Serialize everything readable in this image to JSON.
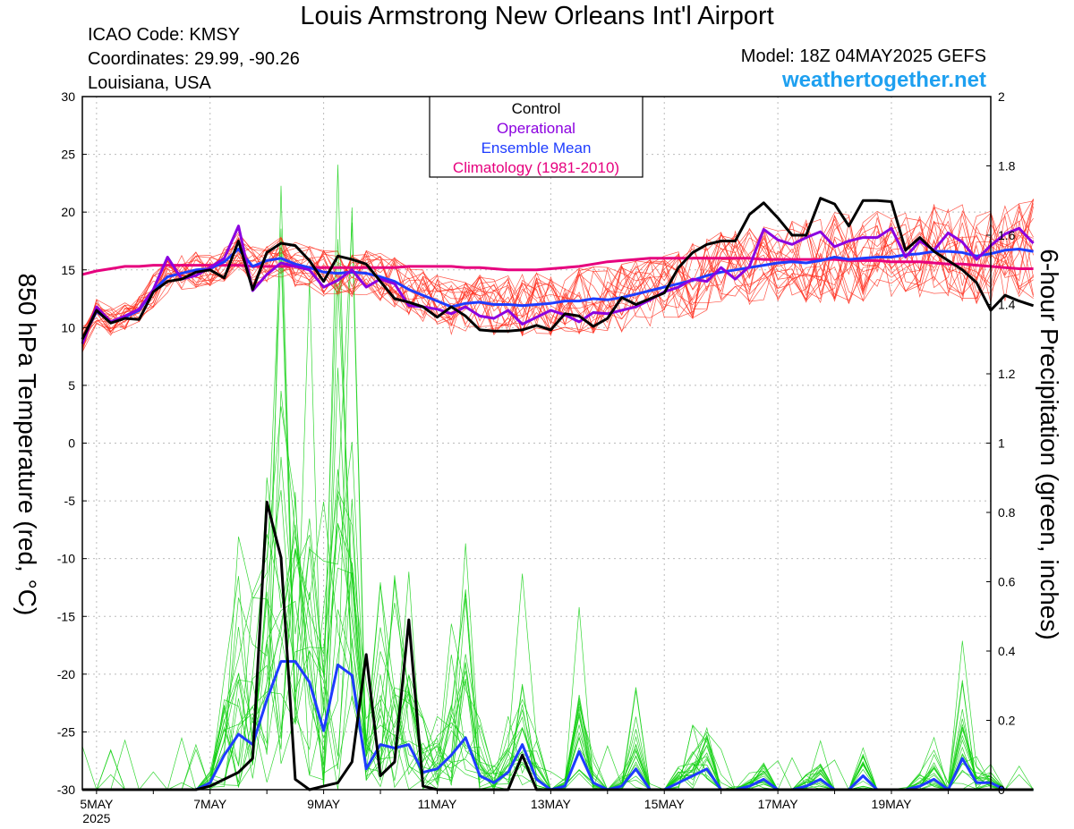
{
  "header": {
    "title": "Louis Armstrong New Orleans Int'l Airport",
    "icao": "ICAO Code: KMSY",
    "coordinates": "Coordinates: 29.99, -90.26",
    "region": "Louisiana, USA",
    "model": "Model: 18Z 04MAY2025 GEFS",
    "site": "weathertogether.net"
  },
  "chart_data": {
    "type": "line",
    "title": "Louis Armstrong New Orleans Int'l Airport",
    "ylabel_left": "850 hPa Temperature (red, °C)",
    "ylabel_right": "6-hour Precipitation (green, inches)",
    "ylim_left": [
      -30,
      30
    ],
    "ylim_right": [
      0,
      2
    ],
    "yticks_left": [
      -30,
      -25,
      -20,
      -15,
      -10,
      -5,
      0,
      5,
      10,
      15,
      20,
      25,
      30
    ],
    "yticks_right": [
      0,
      0.2,
      0.4,
      0.6,
      0.8,
      1,
      1.2,
      1.4,
      1.6,
      1.8,
      2
    ],
    "xticks": [
      {
        "day": 0,
        "label": "5MAY"
      },
      {
        "day": 2,
        "label": "7MAY"
      },
      {
        "day": 4,
        "label": "9MAY"
      },
      {
        "day": 6,
        "label": "11MAY"
      },
      {
        "day": 8,
        "label": "13MAY"
      },
      {
        "day": 10,
        "label": "15MAY"
      },
      {
        "day": 12,
        "label": "17MAY"
      },
      {
        "day": 14,
        "label": "19MAY"
      }
    ],
    "year_label": "2025",
    "x_unit": "days since 5MAY 00Z, 6-hour steps",
    "xlim": [
      -0.25,
      15.75
    ],
    "grid": true,
    "legend_position": "top-center",
    "legend": [
      {
        "label": "Control",
        "color": "#000000"
      },
      {
        "label": "Operational",
        "color": "#8b00e0"
      },
      {
        "label": "Ensemble Mean",
        "color": "#1e3cff"
      },
      {
        "label": "Climatology (1981-2010)",
        "color": "#e6007e"
      }
    ],
    "colors": {
      "members_temp": "#ff2a1a",
      "members_precip": "#10d010",
      "control": "#000000",
      "operational": "#8b00e0",
      "mean": "#1e3cff",
      "climatology": "#e6007e"
    },
    "series": [
      {
        "name": "Control",
        "axis": "left",
        "x_start": -0.25,
        "step": 0.25,
        "values": [
          9,
          11.5,
          10.4,
          10.8,
          10.7,
          13.1,
          14,
          14.2,
          14.8,
          15,
          14.3,
          17.5,
          13.3,
          16.5,
          17.3,
          17.1,
          15.8,
          14,
          16.2,
          15.9,
          15.5,
          14,
          12.5,
          12.2,
          11.8,
          10.9,
          11.8,
          11,
          9.8,
          9.7,
          9.7,
          9.8,
          10.2,
          9.8,
          11.2,
          11,
          10.1,
          10.8,
          12.6,
          12,
          12.5,
          13,
          15.2,
          16.5,
          17.2,
          17.5,
          17.5,
          19.8,
          20.8,
          19.5,
          18,
          18,
          21.2,
          20.7,
          18.8,
          21,
          21,
          20.9,
          16.7,
          17.8,
          16.6,
          15.8,
          15,
          13.9,
          11.5,
          12.8,
          12.3,
          11.9
        ]
      },
      {
        "name": "Operational",
        "axis": "left",
        "x_start": -0.25,
        "step": 0.25,
        "values": [
          8.6,
          11.8,
          10.5,
          11,
          11.6,
          13.3,
          16.1,
          14.2,
          14.5,
          15.2,
          16,
          18.8,
          13.2,
          14.6,
          15.6,
          15.3,
          15,
          13.5,
          14.1,
          15,
          13.5,
          14.2,
          13.8,
          11.9,
          11.8,
          11.6,
          11.2,
          11.8,
          11,
          10.8,
          11.5,
          10.3,
          10.9,
          11.5,
          11.1,
          10.5,
          11.3,
          11.2,
          11.5,
          11.8,
          12.4,
          13.1,
          13.5,
          14.2,
          14,
          15.2,
          14.2,
          15.3,
          18.5,
          17.6,
          17.2,
          17.8,
          18.3,
          17,
          17.5,
          17.8,
          17.8,
          18.6,
          16.1,
          17.5,
          16.7,
          18.2,
          17.4,
          15.9,
          17.1,
          18.1,
          18.6,
          17.3
        ]
      },
      {
        "name": "Ensemble Mean",
        "axis": "left",
        "x_start": -0.25,
        "step": 0.25,
        "values": [
          9,
          11.4,
          10.5,
          10.9,
          11.5,
          13.2,
          14.4,
          14.7,
          15,
          15.1,
          15.7,
          16.8,
          15.3,
          15.8,
          16,
          15.5,
          15.2,
          14.8,
          14.7,
          14.8,
          14.7,
          14.4,
          14,
          13.3,
          12.8,
          12.3,
          11.8,
          12.1,
          12.2,
          12,
          12,
          11.9,
          12,
          12.1,
          12.3,
          12.3,
          12.5,
          12.4,
          12.6,
          12.9,
          13.2,
          13.5,
          13.8,
          14.1,
          14.5,
          14.8,
          15,
          15.2,
          15.4,
          15.6,
          15.7,
          15.6,
          15.8,
          16.1,
          15.9,
          16,
          16.1,
          16.1,
          16.3,
          16.4,
          16.6,
          16.6,
          16.5,
          16.2,
          16.4,
          16.7,
          16.8,
          16.6
        ]
      },
      {
        "name": "Climatology (1981-2010)",
        "axis": "left",
        "x_start": -0.25,
        "step": 0.25,
        "values": [
          14.6,
          14.9,
          15.1,
          15.3,
          15.3,
          15.4,
          15.4,
          15.4,
          15.4,
          15.4,
          15.4,
          15.4,
          15.3,
          15.3,
          15.3,
          15.3,
          15.2,
          15.2,
          15.2,
          15.2,
          15.2,
          15.2,
          15.2,
          15.3,
          15.3,
          15.3,
          15.3,
          15.2,
          15.2,
          15.1,
          15,
          15,
          15,
          15.1,
          15.2,
          15.3,
          15.5,
          15.7,
          15.8,
          15.9,
          16,
          16,
          16,
          16,
          16,
          16,
          16,
          16,
          15.9,
          15.9,
          15.9,
          15.9,
          15.9,
          15.9,
          15.8,
          15.8,
          15.8,
          15.7,
          15.7,
          15.7,
          15.6,
          15.5,
          15.5,
          15.4,
          15.3,
          15.2,
          15.1,
          15.1
        ]
      },
      {
        "name": "Control",
        "axis": "right",
        "x_start": -0.25,
        "step": 0.25,
        "values": [
          0,
          0,
          0,
          0,
          0,
          0,
          0,
          0,
          0,
          0.01,
          0.03,
          0.05,
          0.09,
          0.83,
          0.67,
          0.03,
          0,
          0.01,
          0.02,
          0.08,
          0.39,
          0.04,
          0.08,
          0.49,
          0.01,
          0,
          0,
          0,
          0,
          0,
          0,
          0.1,
          0,
          0,
          0,
          0,
          0,
          0,
          0,
          0,
          0,
          0,
          0,
          0,
          0,
          0,
          0,
          0,
          0,
          0,
          0,
          0,
          0,
          0,
          0,
          0,
          0,
          0,
          0,
          0,
          0,
          0,
          0,
          0,
          0,
          0,
          0,
          0
        ]
      },
      {
        "name": "Ensemble Mean",
        "axis": "right",
        "x_start": -0.25,
        "step": 0.25,
        "values": [
          0,
          0,
          0,
          0,
          0,
          0,
          0,
          0,
          0,
          0.02,
          0.1,
          0.16,
          0.13,
          0.26,
          0.37,
          0.37,
          0.31,
          0.17,
          0.36,
          0.33,
          0.06,
          0.13,
          0.12,
          0.13,
          0.05,
          0.06,
          0.1,
          0.15,
          0.04,
          0.02,
          0.05,
          0.13,
          0.03,
          0,
          0.01,
          0.11,
          0.02,
          0,
          0.01,
          0.06,
          0,
          0,
          0.02,
          0.04,
          0.06,
          0,
          0,
          0.01,
          0.03,
          0,
          0,
          0.01,
          0.03,
          0,
          0,
          0.04,
          0,
          0,
          0,
          0.01,
          0.03,
          0,
          0.09,
          0.02,
          0.02,
          0,
          0,
          0
        ]
      }
    ]
  }
}
